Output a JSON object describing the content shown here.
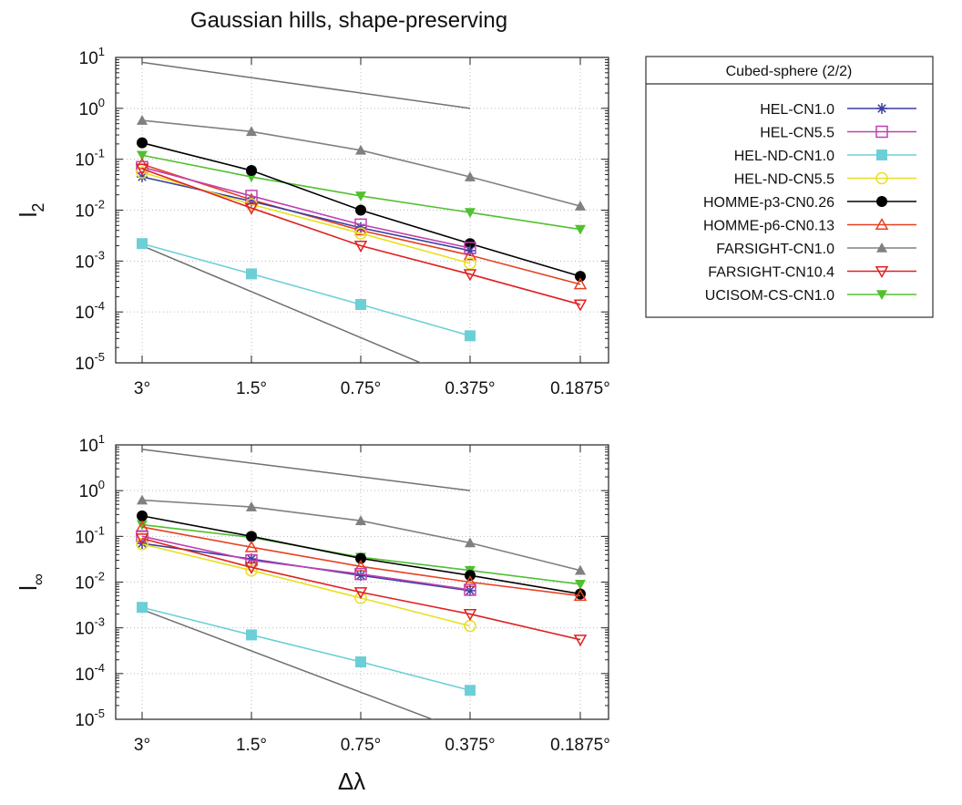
{
  "chart_data": {
    "title": "Gaussian hills, shape-preserving",
    "xlabel": "Δλ",
    "categories": [
      "3°",
      "1.5°",
      "0.75°",
      "0.375°",
      "0.1875°"
    ],
    "x_scale": "log",
    "legend": {
      "title": "Cubed-sphere (2/2)",
      "placement": "right"
    },
    "colors": {
      "HEL-CN1.0": "#3a3fa0",
      "HEL-CN5.5": "#c040b0",
      "HEL-ND-CN1.0": "#6dcfd6",
      "HEL-ND-CN5.5": "#e8e020",
      "HOMME-p3-CN0.26": "#000000",
      "HOMME-p6-CN0.13": "#e84020",
      "FARSIGHT-CN1.0": "#808080",
      "FARSIGHT-CN10.4": "#e02020",
      "UCISOM-CS-CN1.0": "#50c030",
      "reference": "#707070"
    },
    "markers": {
      "HEL-CN1.0": "star",
      "HEL-CN5.5": "square-open",
      "HEL-ND-CN1.0": "square-filled",
      "HEL-ND-CN5.5": "circle-open",
      "HOMME-p3-CN0.26": "circle-filled",
      "HOMME-p6-CN0.13": "triangle-open",
      "FARSIGHT-CN1.0": "triangle-filled",
      "FARSIGHT-CN10.4": "triangle-down-open",
      "UCISOM-CS-CN1.0": "triangle-down-filled"
    },
    "panels": [
      {
        "ylabel_base": "l",
        "ylabel_sub": "2",
        "y_scale": "log",
        "ylim": [
          1e-05,
          10
        ],
        "y_ticks": [
          {
            "base": "10",
            "exp": "1"
          },
          {
            "base": "10",
            "exp": "0"
          },
          {
            "base": "10",
            "exp": "-1"
          },
          {
            "base": "10",
            "exp": "-2"
          },
          {
            "base": "10",
            "exp": "-3"
          },
          {
            "base": "10",
            "exp": "-4"
          },
          {
            "base": "10",
            "exp": "-5"
          }
        ],
        "grid": true,
        "series": [
          {
            "name": "HEL-CN1.0",
            "values": [
              0.045,
              0.015,
              0.0045,
              0.0016,
              null
            ]
          },
          {
            "name": "HEL-CN5.5",
            "values": [
              0.07,
              0.019,
              0.0052,
              0.0018,
              null
            ]
          },
          {
            "name": "HEL-ND-CN1.0",
            "values": [
              0.0022,
              0.00056,
              0.00014,
              3.4e-05,
              null
            ]
          },
          {
            "name": "HEL-ND-CN5.5",
            "values": [
              0.055,
              0.013,
              0.0035,
              0.0009,
              null
            ]
          },
          {
            "name": "HOMME-p3-CN0.26",
            "values": [
              0.21,
              0.06,
              0.01,
              0.0022,
              0.0005
            ]
          },
          {
            "name": "HOMME-p6-CN0.13",
            "values": [
              0.08,
              0.016,
              0.004,
              0.0013,
              0.00035
            ]
          },
          {
            "name": "FARSIGHT-CN1.0",
            "values": [
              0.58,
              0.35,
              0.15,
              0.045,
              0.012
            ]
          },
          {
            "name": "FARSIGHT-CN10.4",
            "values": [
              0.065,
              0.011,
              0.002,
              0.00055,
              0.00014
            ]
          },
          {
            "name": "UCISOM-CS-CN1.0",
            "values": [
              0.12,
              0.045,
              0.019,
              0.009,
              0.0042
            ]
          }
        ],
        "reference_lines": [
          {
            "x_start": 0,
            "x_end": 3,
            "y_start": 8,
            "order": 1
          },
          {
            "x_start": 0,
            "x_end": 2.58,
            "y_start": 0.002,
            "order": 3
          }
        ]
      },
      {
        "ylabel_base": "l",
        "ylabel_sub": "∞",
        "y_scale": "log",
        "ylim": [
          1e-05,
          10
        ],
        "y_ticks": [
          {
            "base": "10",
            "exp": "1"
          },
          {
            "base": "10",
            "exp": "0"
          },
          {
            "base": "10",
            "exp": "-1"
          },
          {
            "base": "10",
            "exp": "-2"
          },
          {
            "base": "10",
            "exp": "-3"
          },
          {
            "base": "10",
            "exp": "-4"
          },
          {
            "base": "10",
            "exp": "-5"
          }
        ],
        "grid": true,
        "series": [
          {
            "name": "HEL-CN1.0",
            "values": [
              0.07,
              0.032,
              0.014,
              0.0065,
              null
            ]
          },
          {
            "name": "HEL-CN5.5",
            "values": [
              0.1,
              0.03,
              0.015,
              0.0068,
              null
            ]
          },
          {
            "name": "HEL-ND-CN1.0",
            "values": [
              0.0028,
              0.0007,
              0.00018,
              4.3e-05,
              null
            ]
          },
          {
            "name": "HEL-ND-CN5.5",
            "values": [
              0.068,
              0.018,
              0.0045,
              0.0011,
              null
            ]
          },
          {
            "name": "HOMME-p3-CN0.26",
            "values": [
              0.28,
              0.1,
              0.033,
              0.014,
              0.0055
            ]
          },
          {
            "name": "HOMME-p6-CN0.13",
            "values": [
              0.16,
              0.058,
              0.022,
              0.01,
              0.005
            ]
          },
          {
            "name": "FARSIGHT-CN1.0",
            "values": [
              0.62,
              0.44,
              0.22,
              0.072,
              0.018
            ]
          },
          {
            "name": "FARSIGHT-CN10.4",
            "values": [
              0.09,
              0.021,
              0.006,
              0.002,
              0.00055
            ]
          },
          {
            "name": "UCISOM-CS-CN1.0",
            "values": [
              0.18,
              0.095,
              0.035,
              0.018,
              0.009
            ]
          }
        ],
        "reference_lines": [
          {
            "x_start": 0,
            "x_end": 3,
            "y_start": 8,
            "order": 1
          },
          {
            "x_start": 0,
            "x_end": 2.67,
            "y_start": 0.0025,
            "order": 3
          }
        ]
      }
    ]
  }
}
